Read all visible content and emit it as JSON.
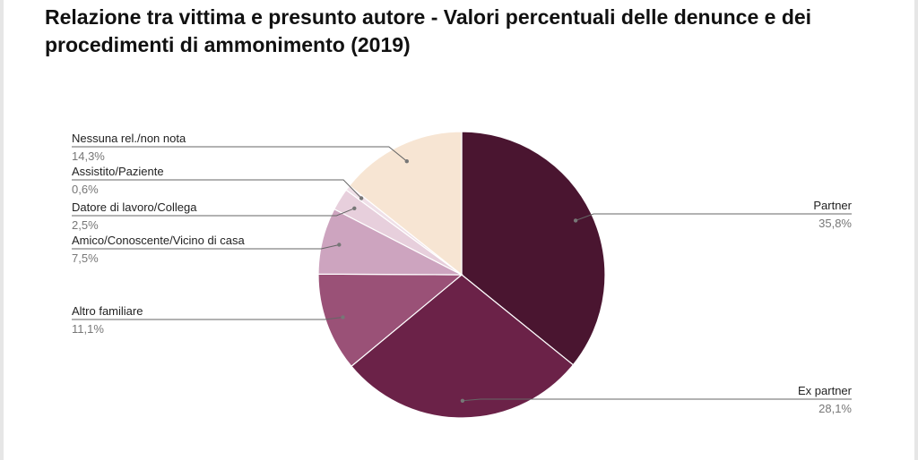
{
  "chart_data": {
    "type": "pie",
    "title": "Relazione tra vittima e presunto autore - Valori percentuali delle denunce e dei procedimenti di ammonimento (2019)",
    "slices": [
      {
        "label": "Partner",
        "value": 35.8,
        "value_label": "35,8%",
        "color": "#4a1530"
      },
      {
        "label": "Ex partner",
        "value": 28.1,
        "value_label": "28,1%",
        "color": "#6b2248"
      },
      {
        "label": "Altro familiare",
        "value": 11.1,
        "value_label": "11,1%",
        "color": "#9a5177"
      },
      {
        "label": "Amico/Conoscente/Vicino di casa",
        "value": 7.5,
        "value_label": "7,5%",
        "color": "#cda4bf"
      },
      {
        "label": "Datore di lavoro/Collega",
        "value": 2.5,
        "value_label": "2,5%",
        "color": "#e7cfdc"
      },
      {
        "label": "Assistito/Paziente",
        "value": 0.6,
        "value_label": "0,6%",
        "color": "#efe0e8"
      },
      {
        "label": "Nessuna rel./non nota",
        "value": 14.3,
        "value_label": "14,3%",
        "color": "#f7e5d3"
      }
    ]
  }
}
